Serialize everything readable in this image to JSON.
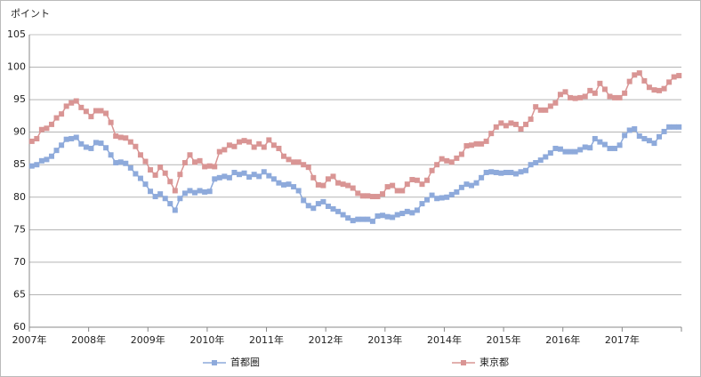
{
  "chart_data": {
    "type": "line",
    "y_label": "ポイント",
    "categories": [
      "2007年",
      null,
      null,
      null,
      null,
      null,
      null,
      null,
      null,
      null,
      null,
      null,
      "2008年",
      null,
      null,
      null,
      null,
      null,
      null,
      null,
      null,
      null,
      null,
      null,
      "2009年",
      null,
      null,
      null,
      null,
      null,
      null,
      null,
      null,
      null,
      null,
      null,
      "2010年",
      null,
      null,
      null,
      null,
      null,
      null,
      null,
      null,
      null,
      null,
      null,
      "2011年",
      null,
      null,
      null,
      null,
      null,
      null,
      null,
      null,
      null,
      null,
      null,
      "2012年",
      null,
      null,
      null,
      null,
      null,
      null,
      null,
      null,
      null,
      null,
      null,
      "2013年",
      null,
      null,
      null,
      null,
      null,
      null,
      null,
      null,
      null,
      null,
      null,
      "2014年",
      null,
      null,
      null,
      null,
      null,
      null,
      null,
      null,
      null,
      null,
      null,
      "2015年",
      null,
      null,
      null,
      null,
      null,
      null,
      null,
      null,
      null,
      null,
      null,
      "2016年",
      null,
      null,
      null,
      null,
      null,
      null,
      null,
      null,
      null,
      null,
      null,
      "2017年",
      null,
      null,
      null,
      null,
      null,
      null,
      null,
      null,
      null,
      null,
      null
    ],
    "series": [
      {
        "name": "首都圏",
        "color": "#8eaadb",
        "values": [
          84.8,
          85.0,
          85.6,
          85.8,
          86.3,
          87.2,
          88.0,
          88.9,
          89.0,
          89.2,
          88.2,
          87.7,
          87.5,
          88.4,
          88.3,
          87.6,
          86.5,
          85.3,
          85.4,
          85.2,
          84.5,
          83.6,
          82.9,
          82.0,
          80.9,
          80.1,
          80.5,
          79.8,
          79.0,
          78.0,
          79.8,
          80.6,
          81.0,
          80.7,
          81.0,
          80.8,
          80.9,
          82.8,
          83.0,
          83.2,
          83.0,
          83.8,
          83.5,
          83.7,
          83.1,
          83.5,
          83.2,
          83.9,
          83.3,
          82.8,
          82.2,
          81.9,
          82.0,
          81.6,
          81.0,
          79.5,
          78.7,
          78.3,
          79.0,
          79.3,
          78.6,
          78.2,
          77.8,
          77.3,
          76.8,
          76.4,
          76.6,
          76.6,
          76.6,
          76.3,
          77.1,
          77.2,
          77.0,
          76.9,
          77.3,
          77.5,
          77.8,
          77.6,
          78.0,
          79.0,
          79.6,
          80.3,
          79.8,
          79.9,
          80.0,
          80.4,
          80.8,
          81.5,
          82.0,
          81.8,
          82.2,
          83.0,
          83.8,
          83.9,
          83.8,
          83.7,
          83.8,
          83.8,
          83.6,
          83.9,
          84.1,
          85.0,
          85.3,
          85.7,
          86.2,
          86.8,
          87.5,
          87.4,
          87.0,
          87.0,
          87.0,
          87.3,
          87.7,
          87.6,
          89.0,
          88.5,
          88.1,
          87.5,
          87.5,
          88.0,
          89.5,
          90.3,
          90.5,
          89.4,
          89.0,
          88.7,
          88.3,
          89.3,
          90.1,
          90.8,
          90.8,
          90.8
        ]
      },
      {
        "name": "東京都",
        "color": "#d99594",
        "values": [
          88.6,
          89.0,
          90.4,
          90.6,
          91.2,
          92.2,
          92.8,
          94.0,
          94.5,
          94.8,
          93.8,
          93.2,
          92.4,
          93.3,
          93.3,
          92.9,
          91.5,
          89.4,
          89.2,
          89.1,
          88.5,
          87.8,
          86.5,
          85.5,
          84.2,
          83.4,
          84.6,
          83.7,
          82.4,
          81.0,
          83.5,
          85.3,
          86.5,
          85.4,
          85.6,
          84.7,
          84.8,
          84.7,
          87.0,
          87.3,
          88.0,
          87.8,
          88.5,
          88.7,
          88.5,
          87.7,
          88.2,
          87.7,
          88.8,
          88.0,
          87.5,
          86.3,
          85.8,
          85.4,
          85.4,
          85.0,
          84.6,
          83.0,
          81.9,
          81.8,
          82.8,
          83.2,
          82.2,
          82.0,
          81.8,
          81.4,
          80.6,
          80.2,
          80.2,
          80.1,
          80.1,
          80.5,
          81.6,
          81.8,
          81.0,
          81.0,
          82.0,
          82.7,
          82.6,
          82.0,
          82.6,
          84.1,
          85.0,
          85.9,
          85.6,
          85.4,
          86.0,
          86.6,
          87.9,
          88.0,
          88.2,
          88.2,
          88.6,
          89.8,
          90.8,
          91.4,
          91.0,
          91.4,
          91.2,
          90.5,
          91.2,
          92.0,
          93.9,
          93.4,
          93.4,
          94.0,
          94.5,
          95.8,
          96.2,
          95.3,
          95.2,
          95.3,
          95.5,
          96.4,
          96.0,
          97.5,
          96.6,
          95.5,
          95.3,
          95.3,
          96.0,
          97.8,
          98.8,
          99.1,
          97.9,
          96.9,
          96.5,
          96.4,
          96.7,
          97.7,
          98.5,
          98.7
        ]
      }
    ],
    "ylim": [
      60,
      105
    ],
    "yticks": [
      60,
      65,
      70,
      75,
      80,
      85,
      90,
      95,
      100,
      105
    ],
    "grid": true,
    "legend": "bottom"
  }
}
